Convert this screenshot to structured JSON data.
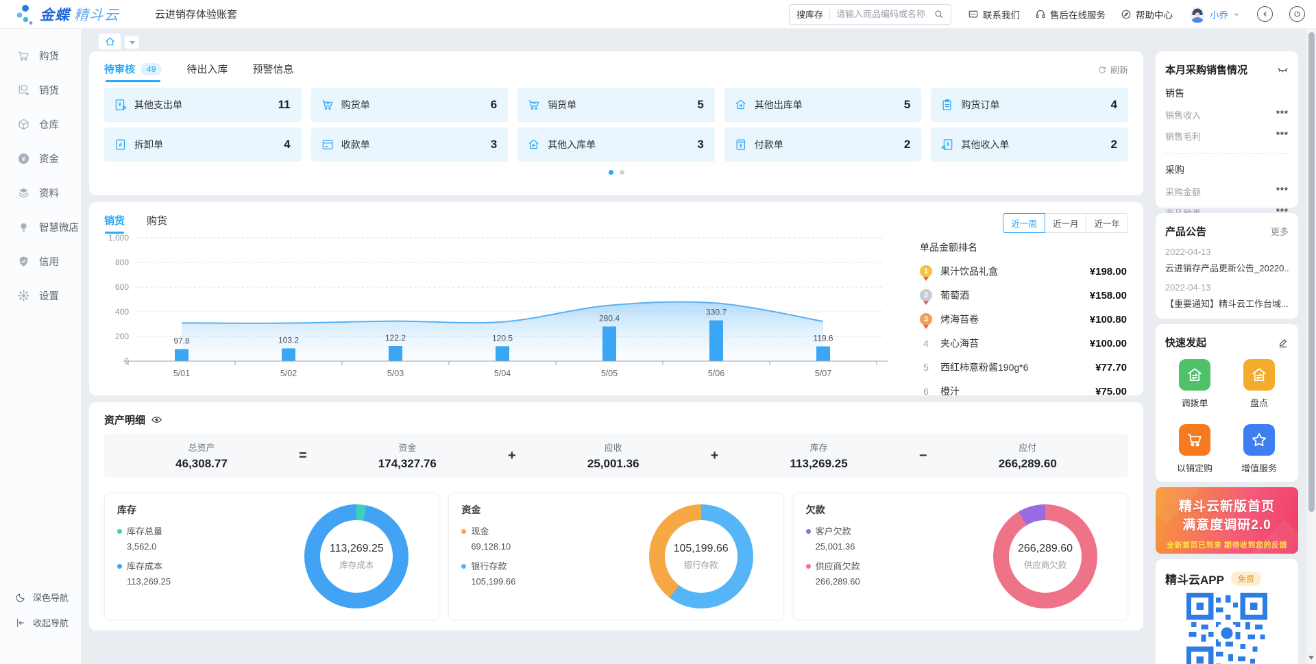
{
  "accent": "#2aa7f5",
  "page_bg": "#e9edf2",
  "header": {
    "brand_bold": "金蝶",
    "brand_light": "精斗云",
    "account_title": "云进销存体验账套",
    "search": {
      "scope": "搜库存",
      "placeholder": "请输入商品编码或名称"
    },
    "links": [
      {
        "label": "联系我们",
        "icon": "chat"
      },
      {
        "label": "售后在线服务",
        "icon": "headset"
      },
      {
        "label": "帮助中心",
        "icon": "help"
      }
    ],
    "user": {
      "name": "小乔"
    }
  },
  "sidebar": {
    "items": [
      {
        "label": "购货",
        "icon": "cart"
      },
      {
        "label": "销货",
        "icon": "sell"
      },
      {
        "label": "仓库",
        "icon": "warehouse"
      },
      {
        "label": "资金",
        "icon": "funds"
      },
      {
        "label": "资料",
        "icon": "layers"
      },
      {
        "label": "智慧微店",
        "icon": "bulb"
      },
      {
        "label": "信用",
        "icon": "shield"
      },
      {
        "label": "设置",
        "icon": "gear"
      }
    ],
    "footer": [
      {
        "label": "深色导航",
        "icon": "moon"
      },
      {
        "label": "收起导航",
        "icon": "collapse"
      }
    ]
  },
  "todo": {
    "tabs": [
      {
        "label": "待审核",
        "badge": "49",
        "active": true
      },
      {
        "label": "待出入库",
        "active": false
      },
      {
        "label": "预警信息",
        "active": false
      }
    ],
    "refresh": "刷新",
    "cards": [
      {
        "label": "其他支出单",
        "count": "11",
        "icon": "yuan-doc-out"
      },
      {
        "label": "购货单",
        "count": "6",
        "icon": "cart-plus"
      },
      {
        "label": "销货单",
        "count": "5",
        "icon": "cart-minus"
      },
      {
        "label": "其他出库单",
        "count": "5",
        "icon": "house-out"
      },
      {
        "label": "购货订单",
        "count": "4",
        "icon": "clipboard"
      },
      {
        "label": "拆卸单",
        "count": "4",
        "icon": "doc-hash"
      },
      {
        "label": "收款单",
        "count": "3",
        "icon": "doc-card"
      },
      {
        "label": "其他入库单",
        "count": "3",
        "icon": "house-in"
      },
      {
        "label": "付款单",
        "count": "2",
        "icon": "doc-yuan"
      },
      {
        "label": "其他收入单",
        "count": "2",
        "icon": "yuan-doc-in"
      }
    ],
    "dots": {
      "count": 2,
      "active": 0
    }
  },
  "trend": {
    "tabs": [
      {
        "label": "销货",
        "active": true
      },
      {
        "label": "购货",
        "active": false
      }
    ],
    "ranges": [
      {
        "label": "近一周",
        "active": true
      },
      {
        "label": "近一月",
        "active": false
      },
      {
        "label": "近一年",
        "active": false
      }
    ],
    "chart_data": {
      "type": "bar",
      "x": [
        "5/01",
        "5/02",
        "5/03",
        "5/04",
        "5/05",
        "5/06",
        "5/07"
      ],
      "series": [
        {
          "name": "销货金额-柱",
          "type": "bar",
          "values": [
            97.8,
            103.2,
            122.2,
            120.5,
            280.4,
            330.7,
            119.6
          ]
        },
        {
          "name": "销货趋势-面积",
          "type": "area",
          "values": [
            310,
            308,
            324,
            318,
            452,
            470,
            322
          ]
        }
      ],
      "ylim": [
        0,
        1000
      ],
      "yticks": [
        0,
        200,
        400,
        600,
        800,
        1000
      ],
      "ytick_labels": [
        "0",
        "200",
        "400",
        "600",
        "800",
        "1,000"
      ],
      "grid": "dashed-horizontal",
      "bar_color": "#3aa6f5",
      "area_line_color": "#58b0f4"
    },
    "ranking": {
      "title": "单品金额排名",
      "items": [
        {
          "rank": "1",
          "name": "果汁饮品礼盒",
          "amount": "¥198.00",
          "medal": "gold"
        },
        {
          "rank": "2",
          "name": "葡萄酒",
          "amount": "¥158.00",
          "medal": "silver"
        },
        {
          "rank": "3",
          "name": "烤海苔卷",
          "amount": "¥100.80",
          "medal": "bronze"
        },
        {
          "rank": "4",
          "name": "夹心海苔",
          "amount": "¥100.00",
          "medal": null
        },
        {
          "rank": "5",
          "name": "西红柿意粉酱190g*6",
          "amount": "¥77.70",
          "medal": null
        },
        {
          "rank": "6",
          "name": "橙汁",
          "amount": "¥75.00",
          "medal": null
        }
      ]
    }
  },
  "assets": {
    "title": "资产明细",
    "formula": {
      "terms": [
        {
          "label": "总资产",
          "value": "46,308.77"
        },
        {
          "label": "资金",
          "value": "174,327.76"
        },
        {
          "label": "应收",
          "value": "25,001.36"
        },
        {
          "label": "库存",
          "value": "113,269.25"
        },
        {
          "label": "应付",
          "value": "266,289.60"
        }
      ],
      "operators": [
        "=",
        "+",
        "+",
        "−"
      ]
    },
    "panels": [
      {
        "title": "库存",
        "legend": [
          {
            "label": "库存总量",
            "value": "3,562.0",
            "color": "#3fd0b8"
          },
          {
            "label": "库存成本",
            "value": "113,269.25",
            "color": "#42a3f5"
          }
        ],
        "donut": {
          "center_value": "113,269.25",
          "center_label": "库存成本",
          "slices": [
            {
              "name": "库存总量",
              "value": 3562.0,
              "color": "#3fd0b8"
            },
            {
              "name": "库存成本",
              "value": 113269.25,
              "color": "#42a3f5"
            }
          ]
        }
      },
      {
        "title": "资金",
        "legend": [
          {
            "label": "现金",
            "value": "69,128.10",
            "color": "#f6a844"
          },
          {
            "label": "银行存款",
            "value": "105,199.66",
            "color": "#55b5f6"
          }
        ],
        "donut": {
          "center_value": "105,199.66",
          "center_label": "银行存款",
          "slices": [
            {
              "name": "银行存款",
              "value": 105199.66,
              "color": "#55b5f6"
            },
            {
              "name": "现金",
              "value": 69128.1,
              "color": "#f6a844"
            }
          ]
        }
      },
      {
        "title": "欠款",
        "legend": [
          {
            "label": "客户欠款",
            "value": "25,001.36",
            "color": "#9a6ae0"
          },
          {
            "label": "供应商欠款",
            "value": "266,289.60",
            "color": "#ef7388"
          }
        ],
        "donut": {
          "center_value": "266,289.60",
          "center_label": "供应商欠款",
          "slices": [
            {
              "name": "供应商欠款",
              "value": 266289.6,
              "color": "#ef7388"
            },
            {
              "name": "客户欠款",
              "value": 25001.36,
              "color": "#9a6ae0"
            }
          ]
        }
      }
    ]
  },
  "purchase_sales": {
    "title": "本月采购销售情况",
    "sections": [
      {
        "heading": "销售",
        "rows": [
          {
            "label": "销售收入",
            "value": "***"
          },
          {
            "label": "销售毛利",
            "value": "***"
          }
        ]
      },
      {
        "heading": "采购",
        "rows": [
          {
            "label": "采购金额",
            "value": "***"
          },
          {
            "label": "商品种类",
            "value": "***"
          }
        ]
      }
    ]
  },
  "announcements": {
    "title": "产品公告",
    "more": "更多",
    "items": [
      {
        "date": "2022-04-13",
        "text": "云进销存产品更新公告_20220..."
      },
      {
        "date": "2022-04-13",
        "text": "【重要通知】精斗云工作台域..."
      }
    ]
  },
  "quick_actions": {
    "title": "快速发起",
    "items": [
      {
        "label": "调拨单",
        "icon": "house-swap",
        "color": "#4fc168"
      },
      {
        "label": "盘点",
        "icon": "house-swap",
        "color": "#f5ab2c"
      },
      {
        "label": "以销定购",
        "icon": "cart-white",
        "color": "#f77b1e"
      },
      {
        "label": "增值服务",
        "icon": "star",
        "color": "#3d7ef0"
      }
    ]
  },
  "banner": {
    "line1": "精斗云新版首页",
    "line2": "满意度调研2.0",
    "line3": "全新首页已到来  期待收到您的反馈"
  },
  "app_card": {
    "title": "精斗云APP",
    "badge": "免费"
  }
}
